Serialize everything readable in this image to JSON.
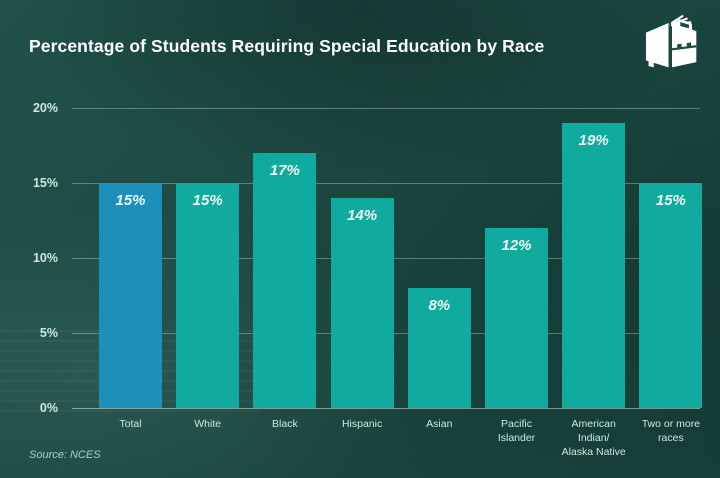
{
  "header": {
    "title": "Percentage of Students Requiring Special Education by Race",
    "logo": "open-book-with-briefcase"
  },
  "footer": {
    "source": "Source: NCES"
  },
  "colors": {
    "background": "#1d4a43",
    "title_text": "#ffffff",
    "bar_default": "#10ab9e",
    "bar_highlight": "#1e8fbb",
    "bar_value_text": "#eef9f6",
    "grid_line": "rgba(255,255,255,0.30)",
    "baseline": "rgba(255,255,255,0.45)",
    "axis_text": "#cde8e2",
    "source_text": "#a9d0c8",
    "logo": "#ffffff"
  },
  "chart_data": {
    "type": "bar",
    "title": "Percentage of Students Requiring Special Education by Race",
    "categories": [
      "Total",
      "White",
      "Black",
      "Hispanic",
      "Asian",
      "Pacific Islander",
      "American Indian/ Alaska Native",
      "Two or more races"
    ],
    "category_lines": [
      [
        "Total"
      ],
      [
        "White"
      ],
      [
        "Black"
      ],
      [
        "Hispanic"
      ],
      [
        "Asian"
      ],
      [
        "Pacific",
        "Islander"
      ],
      [
        "American",
        "Indian/",
        "Alaska Native"
      ],
      [
        "Two or more",
        "races"
      ]
    ],
    "values": [
      15,
      15,
      17,
      14,
      8,
      12,
      19,
      15
    ],
    "value_labels": [
      "15%",
      "15%",
      "17%",
      "14%",
      "8%",
      "12%",
      "19%",
      "15%"
    ],
    "highlight_index": 0,
    "xlabel": "",
    "ylabel": "",
    "ylim": [
      0,
      20
    ],
    "yticks": [
      0,
      5,
      10,
      15,
      20
    ],
    "ytick_labels": [
      "0%",
      "5%",
      "10%",
      "15%",
      "20%"
    ],
    "grid": true,
    "legend": "none",
    "source": "NCES"
  }
}
